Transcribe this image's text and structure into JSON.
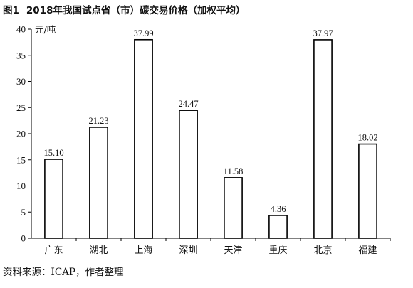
{
  "figure_label": "图1",
  "title": "2018年我国试点省（市）碳交易价格（加权平均）",
  "source": "资料来源：ICAP，作者整理",
  "chart_data": {
    "type": "bar",
    "categories": [
      "广东",
      "湖北",
      "上海",
      "深圳",
      "天津",
      "重庆",
      "北京",
      "福建"
    ],
    "values": [
      15.1,
      21.23,
      37.99,
      24.47,
      11.58,
      4.36,
      37.97,
      18.02
    ],
    "value_labels": [
      "15.10",
      "21.23",
      "37.99",
      "24.47",
      "11.58",
      "4.36",
      "37.97",
      "18.02"
    ],
    "ylabel": "元/吨",
    "ylim": [
      0,
      40
    ],
    "yticks": [
      0,
      5,
      10,
      15,
      20,
      25,
      30,
      35,
      40
    ],
    "grid": false,
    "bar_color": "#ffffff",
    "bar_edge_color": "#000000"
  }
}
